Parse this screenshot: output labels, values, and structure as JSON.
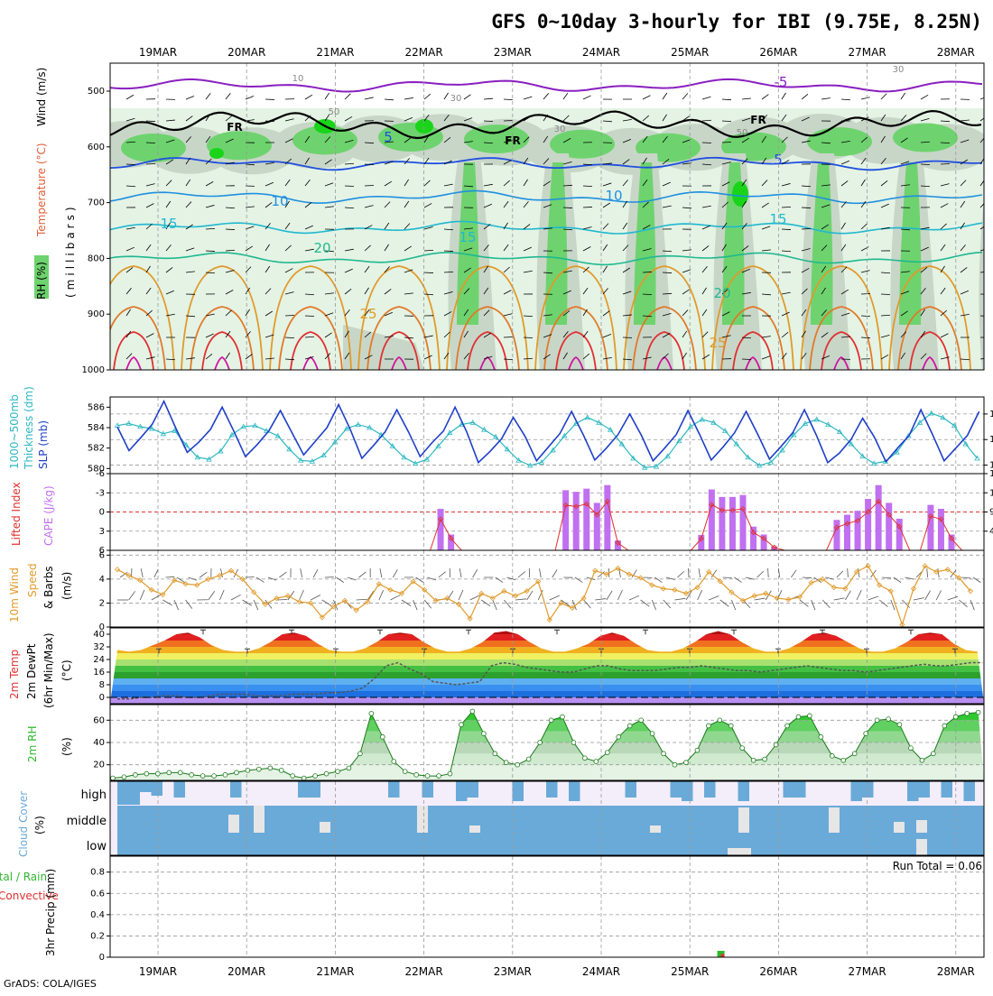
{
  "title": "GFS 0~10day 3-hourly for IBI (9.75E, 8.25N)",
  "footer": "GrADS: COLA/IGES",
  "dates": [
    "19MAR",
    "20MAR",
    "21MAR",
    "22MAR",
    "23MAR",
    "24MAR",
    "25MAR",
    "26MAR",
    "27MAR",
    "28MAR"
  ],
  "colors": {
    "rh_light": "#e4f3e4",
    "rh_mid": "#c8d6c8",
    "rh_dark": "#8fa08f",
    "rh_green": "#6ed36e",
    "rh_bright": "#19d419",
    "slp": "#1f3fc8",
    "thickness": "#2cb8c0",
    "lifted": "#e03030",
    "cape": "#c070f0",
    "wind10m": "#e09a2a",
    "rh2m": "#2db82d",
    "cloud": "#6aaad8",
    "cloud_bg": "#f4eefa",
    "precip": "#2db82d"
  },
  "panel_labels": {
    "upper": {
      "rh": "RH (%)",
      "temperature": "Temperature (°C)",
      "wind": "Wind (m/s)",
      "unit": "(millibars)"
    },
    "slp": {
      "thickness_a": "1000~500mb",
      "thickness_b": "Thickness (dm)",
      "slp": "SLP (mb)"
    },
    "cape": {
      "lifted": "Lifted Index",
      "cape": "CAPE (J/kg)"
    },
    "wind10m": {
      "a": "10m Wind",
      "b": "Speed",
      "c": "& Barbs",
      "d": "(m/s)"
    },
    "temp2m": {
      "a": "2m Temp",
      "b": "2m DewPt",
      "c": "(6hr Min/Max)",
      "d": "(°C)"
    },
    "rh2m": {
      "a": "2m RH",
      "b": "(%)"
    },
    "cloud": {
      "a": "Cloud Cover",
      "b": "(%)",
      "high": "high",
      "middle": "middle",
      "low": "low"
    },
    "precip": {
      "a": "Total / Rain",
      "b": "Convective",
      "c": "3hr Precip (mm)",
      "run_total": "Run Total = 0.06"
    }
  },
  "chart_data": [
    {
      "type": "contour",
      "name": "upper-air cross section",
      "y_axis": {
        "label": "millibars",
        "ticks": [
          500,
          600,
          700,
          800,
          900,
          1000
        ]
      },
      "freezing_level_label": "FR",
      "temperature_contours": [
        {
          "label": "-5",
          "level_mb": 490
        },
        {
          "label": "5",
          "level_mb": 630
        },
        {
          "label": "10",
          "level_mb": 690
        },
        {
          "label": "15",
          "level_mb": 745
        },
        {
          "label": "20",
          "level_mb": 800
        },
        {
          "label": "25",
          "level_mb": 870
        }
      ],
      "rh_contour_labels": [
        "10",
        "30",
        "50"
      ]
    },
    {
      "type": "line",
      "name": "SLP & Thickness",
      "yaxis_left": {
        "label": "Thickness (dm)",
        "ticks": [
          580,
          582,
          584,
          586
        ],
        "lim": [
          579.5,
          587
        ]
      },
      "yaxis_right": {
        "label": "SLP (mb)",
        "ticks": [
          1002,
          1005,
          1008
        ],
        "lim": [
          1001,
          1010
        ]
      },
      "series": [
        {
          "name": "SLP",
          "axis": "right",
          "values": [
            1006.5,
            1003.7,
            1005.2,
            1006.8,
            1009.5,
            1006.4,
            1003.5,
            1004.7,
            1006.2,
            1008.8,
            1006.0,
            1003.0,
            1004.4,
            1006.0,
            1008.4,
            1005.8,
            1003.2,
            1004.8,
            1006.4,
            1009.1,
            1006.2,
            1002.8,
            1004.3,
            1005.9,
            1008.5,
            1005.9,
            1003.0,
            1004.6,
            1006.0,
            1008.8,
            1005.9,
            1002.3,
            1003.6,
            1005.1,
            1007.6,
            1005.4,
            1002.5,
            1004.1,
            1005.7,
            1008.3,
            1005.6,
            1002.6,
            1004.0,
            1005.6,
            1008.0,
            1005.5,
            1002.5,
            1004.0,
            1005.6,
            1008.4,
            1005.6,
            1002.6,
            1004.1,
            1005.8,
            1008.3,
            1005.6,
            1002.7,
            1004.2,
            1005.8,
            1008.5,
            1005.6,
            1002.3,
            1003.4,
            1005.0,
            1007.5,
            1005.3,
            1002.4,
            1004.0,
            1005.5,
            1008.5,
            1005.6,
            1002.5,
            1004.0,
            1005.5,
            1008.3
          ]
        },
        {
          "name": "Thickness",
          "axis": "left",
          "values": [
            584.2,
            584.4,
            584.1,
            583.9,
            583.4,
            583.7,
            582.3,
            581.1,
            580.9,
            581.7,
            583.3,
            584.1,
            584.2,
            583.7,
            583.2,
            581.9,
            580.8,
            580.7,
            581.3,
            582.6,
            583.9,
            584.3,
            584.0,
            583.3,
            582.2,
            581.1,
            580.5,
            580.9,
            582.2,
            583.5,
            584.3,
            584.5,
            583.8,
            583.1,
            581.9,
            580.8,
            580.3,
            580.6,
            581.8,
            583.2,
            584.4,
            585.0,
            584.5,
            583.8,
            582.4,
            581.0,
            580.1,
            580.2,
            581.2,
            582.7,
            584.1,
            584.8,
            584.5,
            583.7,
            582.4,
            581.1,
            580.3,
            580.6,
            581.8,
            583.3,
            584.4,
            584.8,
            584.3,
            583.6,
            582.4,
            581.2,
            580.5,
            580.7,
            581.6,
            583.2,
            584.5,
            585.4,
            585.0,
            584.2,
            582.4,
            581.0,
            580.4
          ]
        }
      ]
    },
    {
      "type": "bar",
      "name": "CAPE & Lifted Index",
      "yaxis_left": {
        "label": "Lifted Index",
        "ticks": [
          -6,
          -3,
          0,
          3,
          6
        ],
        "lim": [
          6,
          -6
        ]
      },
      "yaxis_right": {
        "label": "CAPE (J/kg)",
        "ticks": [
          485,
          970,
          1455,
          1940
        ],
        "lim": [
          0,
          1940
        ]
      },
      "series": [
        {
          "name": "CAPE",
          "type": "bar",
          "values": [
            0,
            0,
            0,
            0,
            0,
            0,
            0,
            0,
            0,
            0,
            0,
            0,
            0,
            0,
            0,
            0,
            0,
            0,
            0,
            0,
            0,
            0,
            0,
            0,
            0,
            0,
            0,
            0,
            0,
            0,
            0,
            0,
            0,
            0,
            0,
            0,
            0,
            0,
            0,
            0,
            0,
            0,
            0,
            0,
            0,
            0,
            0,
            0,
            0,
            0,
            0,
            0,
            0,
            0,
            0,
            0,
            0,
            0,
            0,
            0,
            0,
            0,
            0,
            0,
            0,
            0,
            0,
            0,
            0,
            0,
            0,
            0,
            0,
            0,
            0
          ]
        },
        {
          "name": "Lifted Index",
          "type": "line",
          "values": [
            6,
            6,
            6,
            6,
            6,
            6,
            6,
            6,
            6,
            6,
            6,
            6,
            6,
            6,
            6,
            6,
            6,
            6,
            6,
            6,
            6,
            6,
            6,
            6,
            6,
            6,
            6,
            6,
            6,
            6,
            6,
            6,
            6,
            6,
            6,
            6,
            6,
            6,
            6,
            6,
            6,
            6,
            6,
            6,
            6,
            6,
            6,
            6,
            6,
            6,
            6,
            6,
            6,
            6,
            6,
            6,
            6,
            6,
            6,
            6,
            6,
            6,
            6,
            6,
            6,
            6,
            6,
            6,
            6,
            6,
            6,
            6,
            6,
            6,
            6
          ]
        }
      ]
    },
    {
      "type": "line",
      "name": "10m Wind Speed & Barbs",
      "yaxis": {
        "label": "(m/s)",
        "ticks": [
          0,
          2,
          4,
          6
        ],
        "lim": [
          0,
          6.4
        ]
      },
      "series": [
        {
          "name": "Wind speed",
          "values": [
            4.8,
            4.3,
            3.9,
            3.1,
            2.7,
            3.9,
            3.6,
            3.5,
            4.0,
            4.3,
            4.7,
            4.0,
            2.9,
            1.9,
            2.4,
            2.6,
            2.1,
            2.0,
            0.8,
            1.7,
            2.2,
            1.4,
            2.1,
            3.6,
            3.1,
            2.8,
            3.8,
            3.1,
            2.2,
            2.4,
            1.9,
            0.7,
            2.8,
            2.4,
            3.0,
            2.6,
            3.0,
            3.8,
            0.6,
            2.0,
            1.6,
            2.4,
            4.7,
            4.4,
            4.9,
            4.4,
            4.1,
            3.5,
            3.2,
            3.1,
            2.8,
            3.3,
            4.6,
            3.8,
            2.9,
            2.2,
            2.6,
            2.8,
            2.4,
            2.3,
            2.5,
            3.7,
            4.0,
            3.3,
            3.2,
            4.6,
            5.1,
            3.5,
            3.0,
            0.2,
            3.2,
            5.1,
            4.6,
            4.8,
            4.1,
            3.0
          ]
        }
      ]
    },
    {
      "type": "area",
      "name": "2m Temp & DewPt",
      "yaxis": {
        "label": "(°C)",
        "ticks": [
          0,
          8,
          16,
          24,
          32,
          40
        ],
        "lim": [
          -4,
          44
        ]
      },
      "series": [
        {
          "name": "2m Temp",
          "values": [
            30,
            29,
            30,
            33,
            36,
            40,
            41,
            38,
            33,
            30,
            29,
            29,
            31,
            35,
            40,
            41,
            39,
            34,
            30,
            29,
            29,
            31,
            35,
            40,
            41,
            40,
            35,
            31,
            29,
            29,
            31,
            35,
            41,
            42,
            40,
            35,
            31,
            29,
            29,
            31,
            34,
            39,
            41,
            39,
            34,
            30,
            29,
            29,
            31,
            35,
            40,
            42,
            40,
            35,
            31,
            29,
            29,
            31,
            35,
            40,
            41,
            39,
            35,
            31,
            29,
            29,
            31,
            35,
            40,
            41,
            40,
            34,
            30,
            29
          ]
        },
        {
          "name": "2m DewPt",
          "values": [
            -1,
            -1,
            0,
            0,
            1,
            1,
            0,
            0,
            1,
            2,
            2,
            2,
            1,
            1,
            1,
            2,
            2,
            2,
            3,
            3,
            4,
            6,
            12,
            20,
            22,
            18,
            15,
            10,
            9,
            8,
            9,
            10,
            20,
            22,
            21,
            19,
            18,
            17,
            16,
            16,
            18,
            20,
            20,
            18,
            17,
            17,
            17,
            18,
            19,
            19,
            20,
            19,
            18,
            17,
            17,
            16,
            17,
            18,
            19,
            20,
            19,
            18,
            17,
            17,
            16,
            17,
            18,
            19,
            20,
            21,
            20,
            20,
            21,
            22,
            22
          ]
        }
      ]
    },
    {
      "type": "area",
      "name": "2m RH",
      "yaxis": {
        "label": "(%)",
        "ticks": [
          20,
          40,
          60
        ],
        "lim": [
          6,
          74
        ]
      },
      "series": [
        {
          "name": "2m RH",
          "values": [
            8,
            9,
            11,
            12,
            12,
            13,
            13,
            11,
            10,
            10,
            11,
            13,
            15,
            16,
            17,
            15,
            10,
            8,
            10,
            12,
            14,
            17,
            30,
            66,
            45,
            23,
            14,
            11,
            10,
            10,
            12,
            56,
            68,
            48,
            30,
            22,
            20,
            25,
            40,
            60,
            63,
            40,
            26,
            23,
            31,
            45,
            55,
            60,
            48,
            30,
            20,
            22,
            33,
            55,
            60,
            55,
            35,
            24,
            25,
            38,
            55,
            63,
            64,
            45,
            28,
            24,
            30,
            48,
            60,
            61,
            56,
            35,
            24,
            30,
            55,
            63,
            66,
            67
          ]
        }
      ]
    },
    {
      "type": "heatmap",
      "name": "Cloud Cover",
      "rows": [
        "high",
        "middle",
        "low"
      ],
      "note": "high cloud variable; middle and low layers near 100% with occasional gaps"
    },
    {
      "type": "bar",
      "name": "3hr Precip",
      "yaxis": {
        "label": "3hr Precip (mm)",
        "ticks": [
          0,
          0.2,
          0.4,
          0.6,
          0.8
        ],
        "lim": [
          0,
          0.95
        ]
      },
      "run_total_mm": 0.06,
      "series": [
        {
          "name": "Total / Rain",
          "color": "green",
          "bars": [
            {
              "date_index": 6.35,
              "value": 0.06
            }
          ]
        },
        {
          "name": "Convective",
          "color": "red",
          "bars": [
            {
              "date_index": 6.35,
              "value": 0.03
            }
          ]
        }
      ]
    }
  ]
}
